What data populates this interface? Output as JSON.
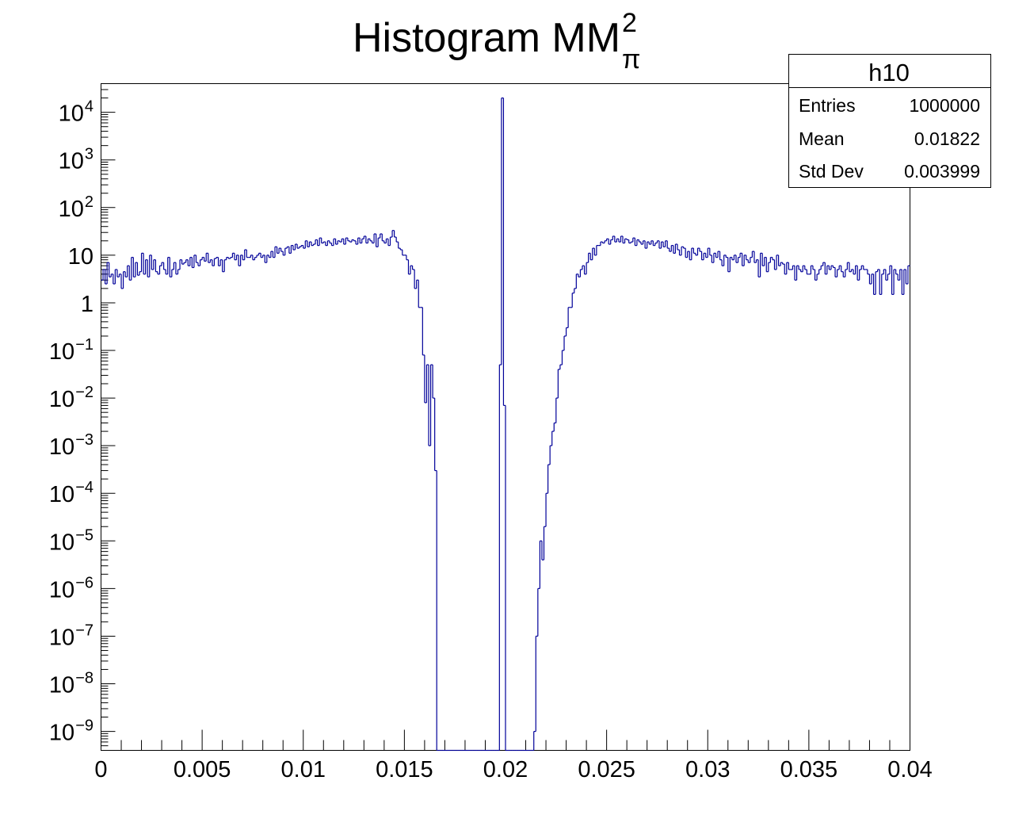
{
  "chart_data": {
    "type": "histogram",
    "title": {
      "main": "Histogram MM",
      "superscript": "2",
      "subscript": "π"
    },
    "xlabel": "",
    "ylabel": "",
    "xlim": [
      0,
      0.04
    ],
    "ylim": [
      4e-10,
      40000
    ],
    "y_scale": "log",
    "grid": false,
    "bins": 400,
    "bin_width": 0.0001,
    "line_color": "#000099",
    "x_ticks": [
      {
        "value": 0,
        "label": "0"
      },
      {
        "value": 0.005,
        "label": "0.005"
      },
      {
        "value": 0.01,
        "label": "0.01"
      },
      {
        "value": 0.015,
        "label": "0.015"
      },
      {
        "value": 0.02,
        "label": "0.02"
      },
      {
        "value": 0.025,
        "label": "0.025"
      },
      {
        "value": 0.03,
        "label": "0.03"
      },
      {
        "value": 0.035,
        "label": "0.035"
      },
      {
        "value": 0.04,
        "label": "0.04"
      }
    ],
    "y_ticks": [
      {
        "exp": 4,
        "base": "10",
        "sup": "4"
      },
      {
        "exp": 3,
        "base": "10",
        "sup": "3"
      },
      {
        "exp": 2,
        "base": "10",
        "sup": "2"
      },
      {
        "exp": 1,
        "base": "10",
        "sup": ""
      },
      {
        "exp": 0,
        "base": "1",
        "sup": ""
      },
      {
        "exp": -1,
        "base": "10",
        "sup": "−1"
      },
      {
        "exp": -2,
        "base": "10",
        "sup": "−2"
      },
      {
        "exp": -3,
        "base": "10",
        "sup": "−3"
      },
      {
        "exp": -4,
        "base": "10",
        "sup": "−4"
      },
      {
        "exp": -5,
        "base": "10",
        "sup": "−5"
      },
      {
        "exp": -6,
        "base": "10",
        "sup": "−6"
      },
      {
        "exp": -7,
        "base": "10",
        "sup": "−7"
      },
      {
        "exp": -8,
        "base": "10",
        "sup": "−8"
      },
      {
        "exp": -9,
        "base": "10",
        "sup": "−9"
      }
    ],
    "values": [
      3,
      5,
      2.5,
      7,
      3.5,
      4,
      2.5,
      5,
      3.5,
      4,
      2,
      4.5,
      3.5,
      6,
      3,
      9,
      3.5,
      7,
      3.8,
      4.5,
      11,
      4,
      8,
      3.5,
      10,
      5,
      8,
      4.5,
      4,
      6,
      7,
      5,
      4,
      9,
      3.5,
      5,
      7,
      4,
      5,
      8,
      6.5,
      7,
      8,
      6,
      9,
      5.5,
      10,
      7,
      6,
      8,
      9,
      7.5,
      11,
      7,
      8,
      6,
      8.5,
      9,
      6,
      8,
      4.5,
      8,
      9,
      8.5,
      9,
      11,
      8,
      10,
      6,
      10,
      8,
      13,
      9,
      9,
      10,
      8,
      9,
      10,
      11,
      9,
      10,
      7,
      10,
      9,
      12,
      9,
      15,
      11,
      14,
      12,
      10,
      14,
      15,
      11,
      16,
      13,
      17,
      14,
      15,
      16,
      14,
      20,
      15,
      19,
      16,
      17,
      21,
      16,
      23,
      18,
      19,
      16,
      20,
      18,
      16,
      22,
      17,
      20,
      19,
      22,
      17,
      23,
      20,
      19,
      21,
      20,
      17,
      23,
      18,
      22,
      25,
      18,
      22,
      20,
      18,
      28,
      15,
      23,
      28,
      20,
      18,
      22,
      16,
      24,
      33,
      24,
      19,
      14,
      13,
      10,
      10,
      8,
      4,
      6,
      5,
      2,
      3,
      0.8,
      0.8,
      0.08,
      0.008,
      0.05,
      0.001,
      0.05,
      0.01,
      0.0003,
      0,
      0,
      0,
      0,
      0,
      0,
      0,
      0,
      0,
      0,
      0,
      0,
      0,
      0,
      0,
      0,
      0,
      0,
      0,
      0,
      0,
      0,
      0,
      0,
      0,
      0,
      0,
      0,
      0,
      0,
      0,
      0.05,
      20000,
      0.007,
      0,
      0,
      0,
      0,
      0,
      0,
      0,
      0,
      0,
      0,
      0,
      0,
      0,
      0,
      1e-09,
      1e-07,
      1e-06,
      1e-05,
      4e-06,
      2e-05,
      0.0001,
      0.0004,
      0.001,
      0.002,
      0.003,
      0.01,
      0.04,
      0.05,
      0.1,
      0.2,
      0.3,
      0.8,
      0.8,
      1.6,
      2,
      4,
      3.5,
      5,
      6,
      4,
      7,
      11,
      8,
      14,
      10,
      16,
      16,
      19,
      18,
      20,
      22,
      17,
      21,
      25,
      19,
      22,
      19,
      25,
      18,
      22,
      21,
      18,
      19,
      23,
      16,
      21,
      19,
      17,
      20,
      14,
      19,
      17,
      20,
      16,
      18,
      20,
      14,
      19,
      15,
      20,
      14,
      12,
      16,
      11,
      17,
      13,
      10,
      15,
      14,
      9,
      12,
      8,
      14,
      11,
      10,
      14,
      12,
      8,
      11,
      9,
      14,
      10,
      7,
      11,
      9,
      12,
      8,
      6,
      10,
      9,
      4.5,
      9,
      8,
      10,
      7,
      9,
      11,
      6,
      10,
      8,
      7,
      9,
      12,
      7,
      8,
      3.5,
      11,
      6,
      9,
      4.5,
      7,
      9,
      8,
      5,
      10,
      6,
      7,
      6.5,
      4,
      7,
      5,
      5,
      6,
      3,
      6,
      5,
      4.5,
      6,
      5,
      4,
      4,
      6,
      5,
      3,
      4,
      5,
      6,
      7,
      4,
      6,
      5,
      6,
      5.5,
      3.5,
      5,
      6,
      4.5,
      3.5,
      5,
      7,
      4.5,
      5,
      4,
      6,
      3,
      5,
      6,
      5,
      5,
      4,
      2.5,
      4,
      1.5,
      4.5,
      5,
      1.5,
      4,
      5,
      3,
      4,
      6,
      1.5,
      5,
      4,
      3,
      5,
      1.5,
      5,
      2.5,
      6
    ]
  },
  "stats_box": {
    "name": "h10",
    "rows": [
      {
        "label": "Entries",
        "value": "1000000"
      },
      {
        "label": "Mean",
        "value": "0.01822"
      },
      {
        "label": "Std Dev",
        "value": "0.003999"
      }
    ]
  }
}
